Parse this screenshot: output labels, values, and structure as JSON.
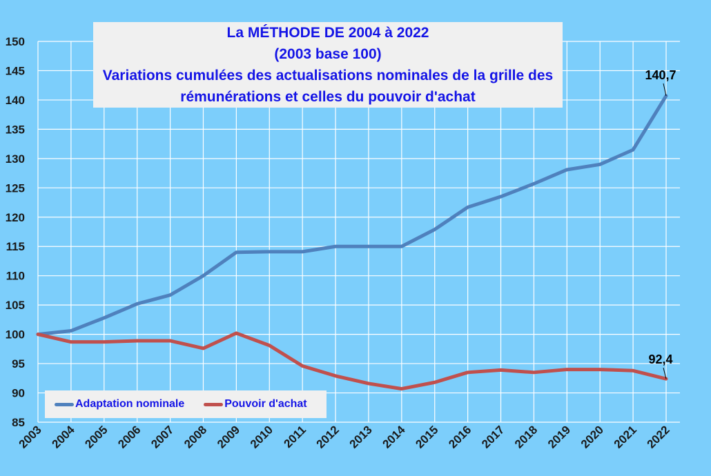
{
  "chart_data": {
    "type": "line",
    "title_lines": [
      "La MÉTHODE DE 2004 à 2022",
      "(2003 base 100)",
      "Variations cumulées des actualisations nominales de la grille des",
      "rémunérations et  celles du  pouvoir d'achat"
    ],
    "x": [
      "2003",
      "2004",
      "2005",
      "2006",
      "2007",
      "2008",
      "2009",
      "2010",
      "2011",
      "2012",
      "2013",
      "2014",
      "2015",
      "2016",
      "2017",
      "2018",
      "2019",
      "2020",
      "2021",
      "2022"
    ],
    "ylim": [
      85,
      150
    ],
    "yticks": [
      "85",
      "90",
      "95",
      "100",
      "105",
      "110",
      "115",
      "120",
      "125",
      "130",
      "135",
      "140",
      "145",
      "150"
    ],
    "grid": true,
    "legend_position": "bottom-left",
    "series": [
      {
        "name": "Adaptation nominale",
        "color": "#4f81bd",
        "values": [
          100,
          100.6,
          102.8,
          105.2,
          106.7,
          110,
          114,
          114.1,
          114.1,
          115,
          115,
          115,
          117.9,
          121.7,
          123.5,
          125.7,
          128.1,
          129,
          131.5,
          140.7
        ],
        "end_label": "140,7"
      },
      {
        "name": "Pouvoir d'achat",
        "color": "#c0504d",
        "values": [
          100,
          98.7,
          98.7,
          98.9,
          98.9,
          97.6,
          100.2,
          98.1,
          94.6,
          92.9,
          91.6,
          90.7,
          91.8,
          93.5,
          93.9,
          93.5,
          94,
          94,
          93.8,
          92.4
        ],
        "end_label": "92,4"
      }
    ]
  }
}
